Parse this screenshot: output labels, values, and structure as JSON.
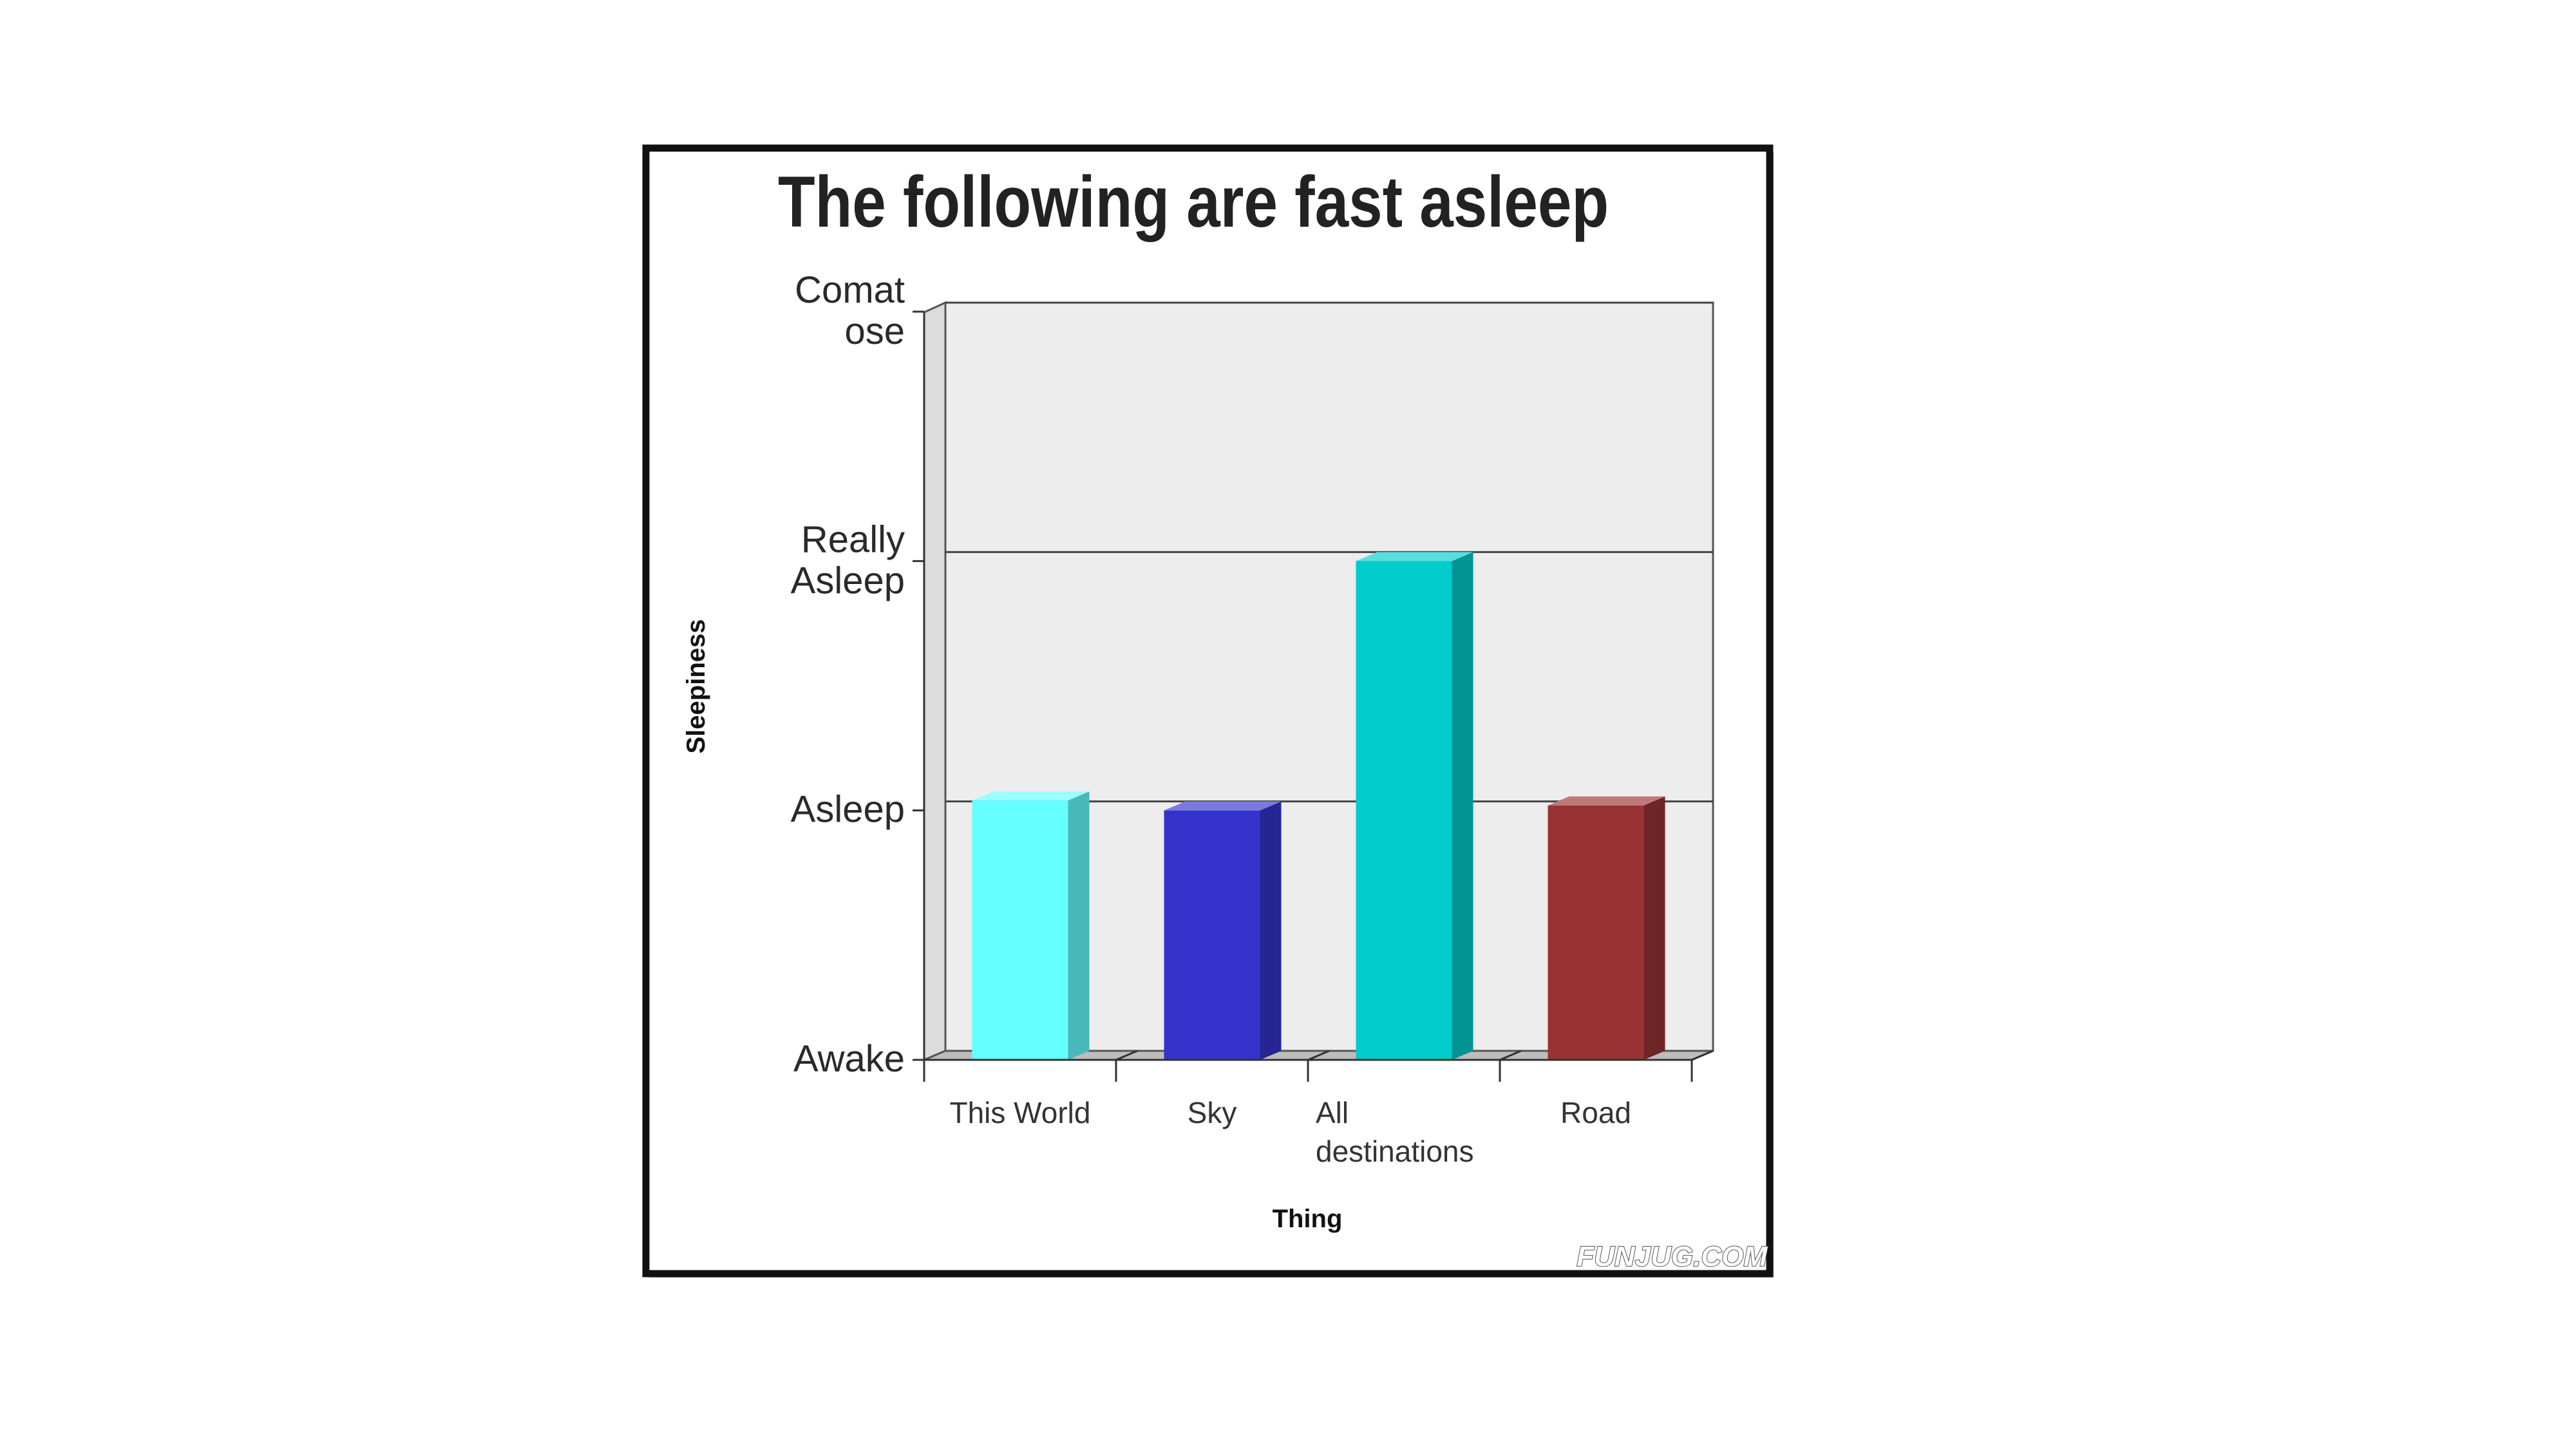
{
  "chart_data": {
    "type": "bar",
    "title": "The following are fast asleep",
    "xlabel": "Thing",
    "ylabel": "Sleepiness",
    "categories": [
      "This World",
      "Sky",
      "All destinations",
      "Road"
    ],
    "category_lines": [
      [
        "This World"
      ],
      [
        "Sky"
      ],
      [
        "All",
        "destinations"
      ],
      [
        "Road"
      ]
    ],
    "values": [
      1.04,
      1.0,
      2.0,
      1.02
    ],
    "bar_colors": [
      "#66ffff",
      "#3333cc",
      "#00cccc",
      "#993333"
    ],
    "yticks": [
      0,
      1,
      2,
      3
    ],
    "ytick_labels": [
      [
        "Awake"
      ],
      [
        "Asleep"
      ],
      [
        "Really",
        "Asleep"
      ],
      [
        "Comat",
        "ose"
      ]
    ],
    "ylim": [
      0,
      3
    ],
    "grid": true,
    "plot_background": "#ededed"
  },
  "watermark": "FUNJUG.COM"
}
